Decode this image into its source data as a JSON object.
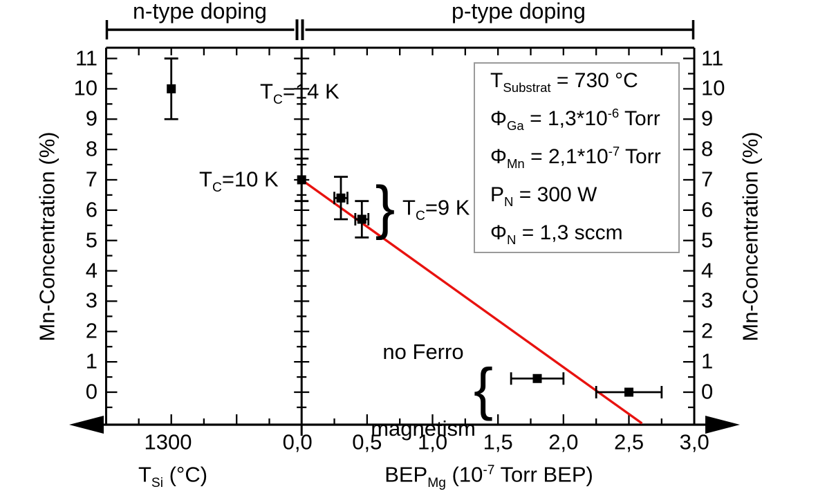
{
  "figure": {
    "background": "#ffffff",
    "brackets": {
      "left_label": "n-type doping",
      "right_label": "p-type doping"
    },
    "axes": {
      "y_left_title": "Mn-Concentration (%)",
      "y_right_title": "Mn-Concentration (%)",
      "x_left_title": {
        "base": "T",
        "sub": "Si",
        "rest": " (°C)"
      },
      "x_right_title": {
        "base": "BEP",
        "sub": "Mg",
        "mid": " (10",
        "sup": "-7",
        "end": " Torr BEP)"
      },
      "y_ticks": {
        "labels": [
          "11",
          "10",
          "9",
          "8",
          "7",
          "6",
          "5",
          "4",
          "3",
          "2",
          "1",
          "0"
        ],
        "values": [
          11,
          10,
          9,
          8,
          7,
          6,
          5,
          4,
          3,
          2,
          1,
          0
        ]
      },
      "x_left_tick": {
        "label": "1300",
        "value": 1300
      },
      "x_right_ticks": {
        "labels": [
          "0,0",
          "0,5",
          "1,0",
          "1,5",
          "2,0",
          "2,5",
          "3,0"
        ],
        "values": [
          0,
          0.5,
          1,
          1.5,
          2,
          2.5,
          3
        ]
      }
    },
    "annotations": {
      "tc14": {
        "base": "T",
        "sub": "C",
        "rest": "=14 K"
      },
      "tc10": {
        "base": "T",
        "sub": "C",
        "rest": "=10 K"
      },
      "tc9": {
        "base": "T",
        "sub": "C",
        "rest": "=9 K"
      },
      "tc9_brace": "}",
      "noferro": {
        "line1": "no Ferro",
        "line2": "magnetism",
        "brace": "{"
      }
    },
    "info_box": {
      "lines": [
        {
          "base": "T",
          "sub": "Substrat",
          "rest": " = 730 °C",
          "sup": "",
          "end": ""
        },
        {
          "base": "Φ",
          "sub": "Ga",
          "rest": " = 1,3*10",
          "sup": "-6",
          "end": " Torr"
        },
        {
          "base": "Φ",
          "sub": "Mn",
          "rest": " = 2,1*10",
          "sup": "-7",
          "end": " Torr"
        },
        {
          "base": "P",
          "sub": "N",
          "rest": " = 300 W",
          "sup": "",
          "end": ""
        },
        {
          "base": "Φ",
          "sub": "N",
          "rest": " = 1,3 sccm",
          "sup": "",
          "end": ""
        }
      ]
    },
    "colors": {
      "fit_line": "#e8120f",
      "marker": "#000000",
      "axis": "#000000",
      "box_border": "#9a9a9a"
    }
  },
  "chart_data": {
    "type": "scatter",
    "title": "",
    "ylabel": "Mn-Concentration (%)",
    "ylim": [
      -1.1,
      11.3
    ],
    "y_major_tick": 1,
    "y_minor_tick": 0.5,
    "grid": false,
    "broken_x_axis": true,
    "panels": [
      {
        "name": "n-type doping",
        "xlabel": "T_Si (°C)",
        "x_tick_labels": [
          "1300"
        ],
        "points": [
          {
            "x": 1300,
            "y": 10,
            "y_err": 1,
            "x_err": 0,
            "label": "T_C=14 K"
          }
        ]
      },
      {
        "name": "p-type doping",
        "xlabel": "BEP_Mg (10^-7 Torr BEP)",
        "xlim": [
          0,
          3
        ],
        "x_major_tick": 0.5,
        "x_minor_tick": 0.25,
        "points": [
          {
            "x": 0.0,
            "y": 7.0,
            "y_err": 0.7,
            "x_err": 0,
            "label": "T_C=10 K"
          },
          {
            "x": 0.3,
            "y": 6.4,
            "y_err": 0.7,
            "x_err": 0.05,
            "label": "T_C=9 K"
          },
          {
            "x": 0.46,
            "y": 5.7,
            "y_err": 0.6,
            "x_err": 0.05,
            "label": "T_C=9 K"
          },
          {
            "x": 1.8,
            "y": 0.45,
            "y_err": 0,
            "x_err": 0.2,
            "label": "no Ferromagnetism"
          },
          {
            "x": 2.5,
            "y": 0.0,
            "y_err": 0,
            "x_err": 0.25,
            "label": "no Ferromagnetism"
          }
        ],
        "fit_line": {
          "x": [
            0.0,
            2.6
          ],
          "y": [
            7.0,
            -1.03
          ]
        }
      }
    ]
  }
}
